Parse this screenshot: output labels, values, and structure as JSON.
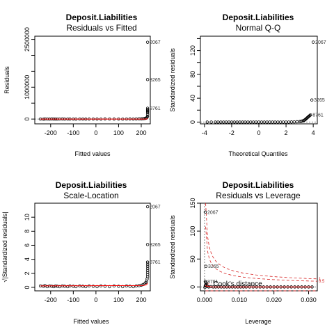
{
  "chart_data": [
    {
      "type": "scatter",
      "title": "Deposit.Liabilities",
      "subtitle": "Residuals vs Fitted",
      "xlabel": "Fitted values",
      "ylabel": "Residuals",
      "xlim": [
        -270,
        240
      ],
      "ylim": [
        -150000,
        2600000
      ],
      "xticks": [
        -200,
        -100,
        0,
        100,
        200
      ],
      "yticks": [
        0,
        1000000,
        2500000
      ],
      "ytick_labels": [
        "0",
        "1000000",
        "2500000"
      ],
      "ytick_minor": [
        500000,
        1500000,
        2000000
      ],
      "points_x": [
        -245,
        -232,
        -225,
        -215,
        -205,
        -195,
        -186,
        -178,
        -170,
        -160,
        -148,
        -138,
        -125,
        -115,
        -100,
        -88,
        -72,
        -58,
        -45,
        -30,
        -12,
        5,
        22,
        40,
        60,
        80,
        100,
        118,
        135,
        150,
        165,
        178,
        190,
        200,
        208,
        215,
        220,
        224,
        226,
        228,
        228,
        228,
        228,
        228,
        228,
        228,
        228,
        228
      ],
      "points_y": [
        2000,
        -3000,
        4000,
        1000,
        -2000,
        3000,
        0,
        2500,
        -1500,
        1000,
        3000,
        -2000,
        1500,
        0,
        2000,
        -1000,
        1000,
        2500,
        -2000,
        0,
        1500,
        2000,
        -1000,
        3000,
        1000,
        0,
        2000,
        -1500,
        1000,
        3000,
        2000,
        5000,
        6000,
        8000,
        12000,
        18000,
        25000,
        40000,
        60000,
        90000,
        150000,
        200000,
        240000,
        270000,
        300000,
        340000,
        2410000,
        1240000
      ],
      "labels": [
        {
          "text": "2067",
          "x": 228,
          "y": 2410000
        },
        {
          "text": "3265",
          "x": 228,
          "y": 1240000
        },
        {
          "text": "8761",
          "x": 228,
          "y": 340000
        }
      ]
    },
    {
      "type": "scatter",
      "title": "Deposit.Liabilities",
      "subtitle": "Normal Q-Q",
      "xlabel": "Theoretical Quantiles",
      "ylabel": "Standardized residuals",
      "xlim": [
        -4.3,
        4.3
      ],
      "ylim": [
        -3,
        144
      ],
      "xticks": [
        -4,
        -2,
        0,
        2,
        4
      ],
      "yticks": [
        0,
        40,
        80,
        120
      ],
      "ytick_minor": [
        20,
        60,
        100,
        140
      ],
      "points_x": [
        -3.8,
        -3.5,
        -3.2,
        -3.0,
        -2.8,
        -2.6,
        -2.4,
        -2.2,
        -2.0,
        -1.8,
        -1.6,
        -1.4,
        -1.2,
        -1.0,
        -0.8,
        -0.6,
        -0.4,
        -0.2,
        0,
        0.2,
        0.4,
        0.6,
        0.8,
        1.0,
        1.2,
        1.4,
        1.6,
        1.8,
        2.0,
        2.2,
        2.4,
        2.6,
        2.8,
        3.0,
        3.1,
        3.2,
        3.3,
        3.35,
        3.4,
        3.45,
        3.5,
        3.55,
        3.6,
        3.65,
        3.7,
        3.75,
        3.8,
        4.0,
        3.9
      ],
      "points_y": [
        0,
        0,
        0,
        0,
        0,
        0,
        0,
        0,
        0,
        0,
        0,
        0,
        0,
        0,
        0,
        0,
        0,
        0,
        0,
        0,
        0,
        0,
        0,
        0,
        0,
        0,
        0,
        0,
        0,
        0,
        0.2,
        0.3,
        0.5,
        0.8,
        1.2,
        1.8,
        2.5,
        3.2,
        4,
        5,
        6,
        7,
        8,
        9,
        10,
        11,
        12,
        134,
        37
      ],
      "labels": [
        {
          "text": "2067",
          "x": 4.0,
          "y": 134
        },
        {
          "text": "3265",
          "x": 3.9,
          "y": 37
        },
        {
          "text": "8761",
          "x": 3.8,
          "y": 12
        }
      ]
    },
    {
      "type": "scatter",
      "title": "Deposit.Liabilities",
      "subtitle": "Scale-Location",
      "xlabel": "Fitted values",
      "ylabel": "√|Standardized residuals|",
      "xlim": [
        -270,
        240
      ],
      "ylim": [
        -0.5,
        12
      ],
      "xticks": [
        -200,
        -100,
        0,
        100,
        200
      ],
      "yticks": [
        0,
        2,
        4,
        6,
        8,
        10
      ],
      "points_x": [
        -245,
        -232,
        -225,
        -215,
        -205,
        -195,
        -186,
        -178,
        -170,
        -160,
        -148,
        -138,
        -125,
        -115,
        -100,
        -88,
        -72,
        -58,
        -45,
        -30,
        -12,
        5,
        22,
        40,
        60,
        80,
        100,
        118,
        135,
        150,
        165,
        178,
        190,
        200,
        208,
        215,
        220,
        224,
        226,
        228,
        228,
        228,
        228,
        228,
        228,
        228,
        228,
        228,
        228,
        228
      ],
      "points_y": [
        0.2,
        0.15,
        0.25,
        0.1,
        0.2,
        0.15,
        0.1,
        0.2,
        0.15,
        0.1,
        0.2,
        0.15,
        0.1,
        0.2,
        0.15,
        0.1,
        0.2,
        0.15,
        0.1,
        0.2,
        0.15,
        0.1,
        0.2,
        0.15,
        0.1,
        0.2,
        0.15,
        0.1,
        0.2,
        0.15,
        0.1,
        0.2,
        0.25,
        0.3,
        0.4,
        0.5,
        0.7,
        0.9,
        1.2,
        1.5,
        1.8,
        2.1,
        2.4,
        2.7,
        3.0,
        3.3,
        3.6,
        11.5,
        6.1,
        3.6
      ],
      "labels": [
        {
          "text": "2067",
          "x": 228,
          "y": 11.5
        },
        {
          "text": "3265",
          "x": 228,
          "y": 6.1
        },
        {
          "text": "8761",
          "x": 228,
          "y": 3.6
        }
      ]
    },
    {
      "type": "scatter",
      "title": "Deposit.Liabilities",
      "subtitle": "Residuals vs Leverage",
      "xlabel": "Leverage",
      "ylabel": "Standardized residuals",
      "xlim": [
        -0.0012,
        0.0325
      ],
      "ylim": [
        -7,
        150
      ],
      "xticks": [
        0.0,
        0.01,
        0.02,
        0.03
      ],
      "xtick_labels": [
        "0.000",
        "0.010",
        "0.020",
        "0.030"
      ],
      "yticks": [
        0,
        50,
        100,
        150
      ],
      "points_x": [
        0.0002,
        0.0004,
        0.0002,
        0.0005,
        0.0003,
        0.0008,
        0.0012,
        0.0018,
        0.0025,
        0.0032,
        0.004,
        0.0048,
        0.0056,
        0.0064,
        0.0072,
        0.008,
        0.0088,
        0.0096,
        0.0104,
        0.0112,
        0.012,
        0.013,
        0.014,
        0.015,
        0.016,
        0.017,
        0.018,
        0.019,
        0.02,
        0.021,
        0.022,
        0.023,
        0.024,
        0.025,
        0.026,
        0.027,
        0.028,
        0.029,
        0.03,
        0.031,
        0.0003,
        0.0004,
        0.0002,
        0.0001
      ],
      "points_y": [
        134,
        37,
        10,
        6,
        3,
        1,
        0,
        0.5,
        0,
        0,
        0,
        0,
        0,
        0,
        0,
        0,
        0,
        0,
        0,
        0,
        0,
        0,
        0,
        0,
        0,
        0,
        0,
        0,
        0,
        0,
        0,
        0,
        0,
        0,
        0,
        0,
        0,
        0,
        0,
        0,
        8,
        4,
        2,
        -1
      ],
      "labels": [
        {
          "text": "2067",
          "x": 0.0002,
          "y": 134
        },
        {
          "text": "3265",
          "x": 0.0004,
          "y": 37
        },
        {
          "text": "8761",
          "x": 0.0002,
          "y": 10
        }
      ],
      "cook_levels": [
        {
          "label": "0.5",
          "c": 0.5
        },
        {
          "label": "1",
          "c": 1
        }
      ],
      "cook_legend": "Cook's distance"
    }
  ],
  "colors": {
    "points": "#000000",
    "smoother": "#ff0000",
    "cook": "#d62020",
    "reference": "#808080"
  }
}
